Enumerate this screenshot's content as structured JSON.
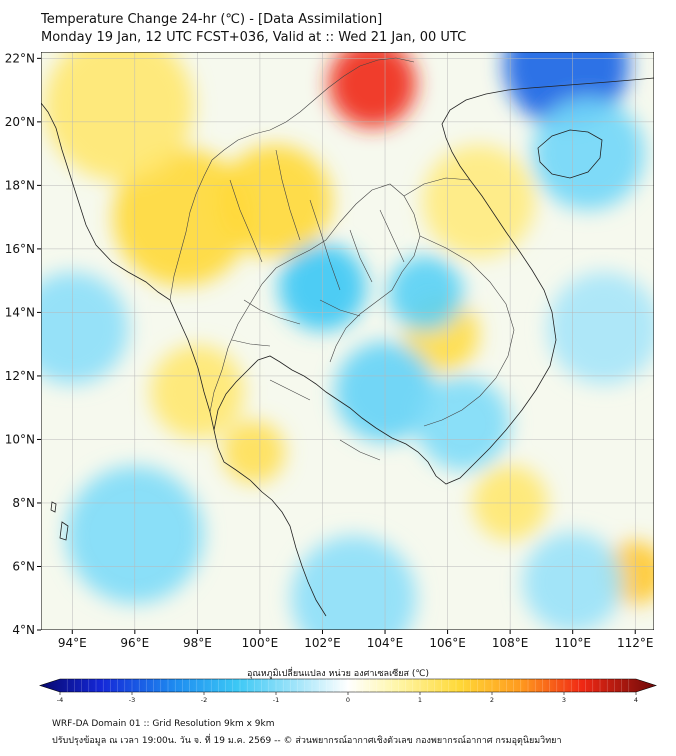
{
  "title": {
    "line1": "Temperature Change 24-hr (℃) - [Data Assimilation]",
    "line2": "Monday 19 Jan, 12 UTC FCST+036, Valid at :: Wed 21 Jan, 00 UTC"
  },
  "map": {
    "lat_labels": [
      "22°N",
      "20°N",
      "18°N",
      "16°N",
      "14°N",
      "12°N",
      "10°N",
      "8°N",
      "6°N",
      "4°N"
    ],
    "lon_labels": [
      "94°E",
      "96°E",
      "98°E",
      "100°E",
      "102°E",
      "104°E",
      "106°E",
      "108°E",
      "110°E",
      "112°E"
    ],
    "lat_range": [
      4,
      22.2
    ],
    "lon_range": [
      93,
      112.6
    ],
    "field_blobs": [
      {
        "lon": 103.6,
        "lat": 21.2,
        "r": 1.4,
        "value": 3.0
      },
      {
        "lon": 97.5,
        "lat": 17.0,
        "r": 2.2,
        "value": 1.4
      },
      {
        "lon": 100.5,
        "lat": 17.5,
        "r": 1.8,
        "value": 1.4
      },
      {
        "lon": 95.5,
        "lat": 20.5,
        "r": 2.4,
        "value": 1.0
      },
      {
        "lon": 107.0,
        "lat": 17.5,
        "r": 1.8,
        "value": 0.9
      },
      {
        "lon": 105.8,
        "lat": 13.3,
        "r": 1.2,
        "value": 1.3
      },
      {
        "lon": 99.8,
        "lat": 9.6,
        "r": 1.0,
        "value": 1.2
      },
      {
        "lon": 112.0,
        "lat": 5.8,
        "r": 1.0,
        "value": 1.6
      },
      {
        "lon": 108.0,
        "lat": 8.0,
        "r": 1.2,
        "value": 1.0
      },
      {
        "lon": 98.0,
        "lat": 11.5,
        "r": 1.5,
        "value": 1.0
      },
      {
        "lon": 109.8,
        "lat": 21.8,
        "r": 2.0,
        "value": -2.6
      },
      {
        "lon": 110.5,
        "lat": 19.0,
        "r": 1.8,
        "value": -1.0
      },
      {
        "lon": 102.0,
        "lat": 14.8,
        "r": 1.4,
        "value": -1.4
      },
      {
        "lon": 105.3,
        "lat": 14.6,
        "r": 1.2,
        "value": -1.2
      },
      {
        "lon": 104.0,
        "lat": 11.5,
        "r": 1.6,
        "value": -1.1
      },
      {
        "lon": 106.5,
        "lat": 10.5,
        "r": 1.5,
        "value": -0.9
      },
      {
        "lon": 94.0,
        "lat": 13.5,
        "r": 1.8,
        "value": -0.8
      },
      {
        "lon": 96.0,
        "lat": 7.0,
        "r": 2.2,
        "value": -0.9
      },
      {
        "lon": 103.0,
        "lat": 5.0,
        "r": 2.0,
        "value": -0.8
      },
      {
        "lon": 110.0,
        "lat": 5.5,
        "r": 1.6,
        "value": -0.7
      },
      {
        "lon": 111.0,
        "lat": 13.5,
        "r": 1.8,
        "value": -0.6
      }
    ]
  },
  "colorbar": {
    "label": "อุณหภูมิเปลี่ยนแปลง หน่วย องศาเซลเซียส (℃)",
    "min": -4,
    "max": 4,
    "ticks": [
      "-4",
      "-3",
      "-2",
      "-1",
      "0",
      "1",
      "2",
      "3",
      "4"
    ]
  },
  "footer": {
    "line1": "WRF-DA Domain 01 :: Grid Resolution 9km x 9km",
    "line2": "ปรับปรุงข้อมูล ณ เวลา 19:00น. วัน จ. ที่ 19 ม.ค. 2569 -- © ส่วนพยากรณ์อากาศเชิงตัวเลข กองพยากรณ์อากาศ กรมอุตุนิยมวิทยา"
  }
}
